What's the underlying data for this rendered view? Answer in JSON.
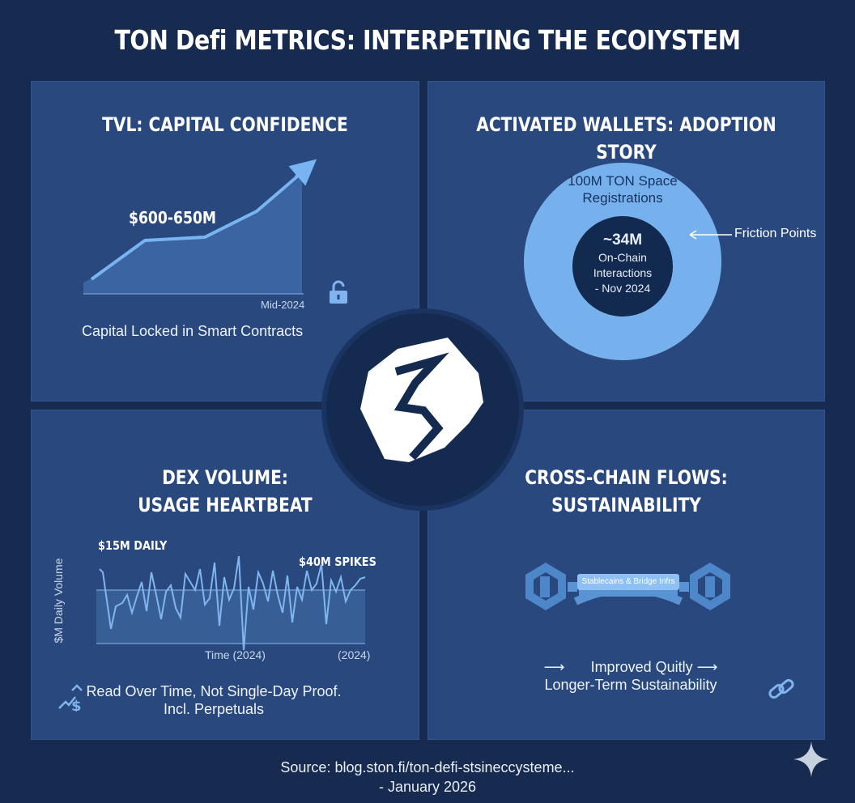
{
  "title": "TON Defi METRICS: INTERPETING THE ECOIYSTEM",
  "colors": {
    "background": "#172b50",
    "panel": "#28487e",
    "accent": "#6aa7ea",
    "dark_circle": "#142a4f"
  },
  "tvl": {
    "title": "TVL: CAPITAL CONFIDENCE",
    "value_label": "$600-650M",
    "x_label": "Mid-2024",
    "caption": "Capital Locked in Smart Contracts",
    "icon": "lock-icon"
  },
  "wallets": {
    "title": "ACTIVATED WALLETS: ADOPTION STORY",
    "outer_label_1": "100M TON Space",
    "outer_label_2": "Registrations",
    "inner_value": "~34M",
    "inner_line_1": "On-Chain",
    "inner_line_2": "Interactions",
    "inner_line_3": "- Nov 2024",
    "annotation": "Friction Points"
  },
  "dex": {
    "title_line_1": "DEX VOLUME:",
    "title_line_2": "USAGE HEARTBEAT",
    "daily_label": "$15M DAILY",
    "spike_label": "$40M SPIKES",
    "y_label": "$M Daily Volume",
    "x_label": "Time (2024)",
    "x_label_right": "(2024)",
    "caption_1": "Read Over Time, Not Single-Day Proof.",
    "caption_2": "Incl. Perpetuals",
    "icon": "growth-dollar-icon"
  },
  "cross": {
    "title_line_1": "CROSS-CHAIN FLOWS:",
    "title_line_2": "SUSTAINABILITY",
    "bridge_label": "Stablecains & Bridge Infrs",
    "line_1": "Improved Quitly",
    "line_2": "Longer-Term Sustainability",
    "icon": "link-icon"
  },
  "source_line_1": "Source: blog.ston.fi/ton-defi-stsineccysteme...",
  "source_line_2": "- January 2026"
}
